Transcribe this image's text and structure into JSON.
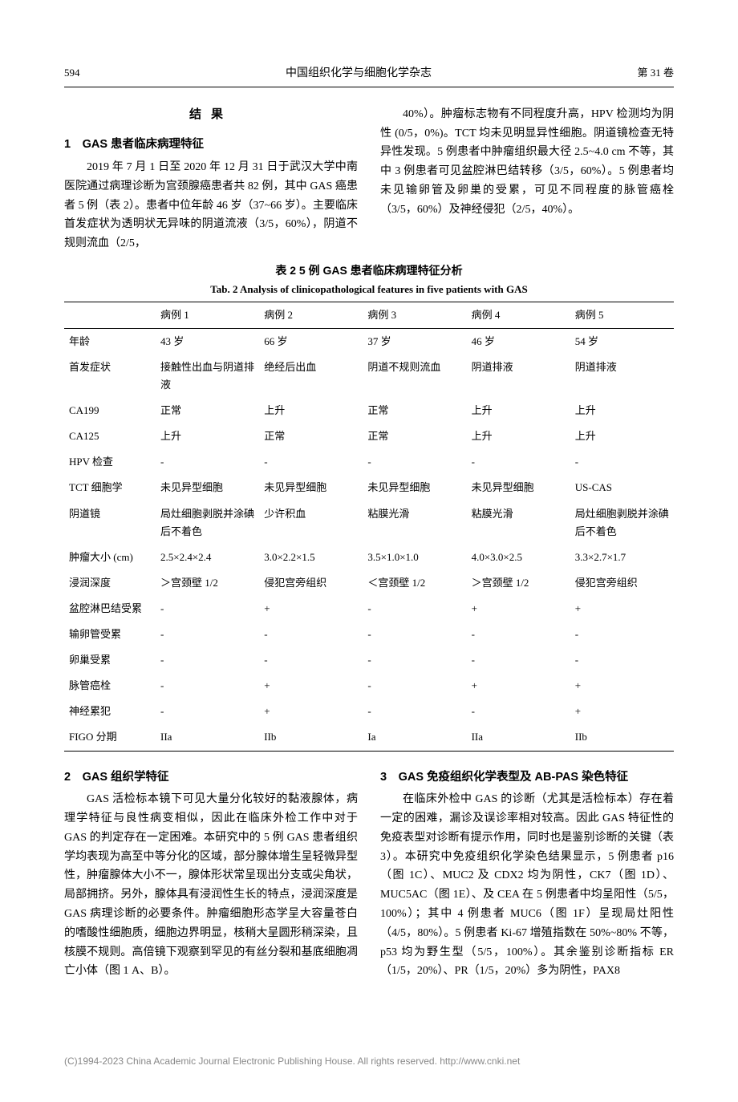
{
  "header": {
    "page_number": "594",
    "journal_title": "中国组织化学与细胞化学杂志",
    "volume": "第 31 卷"
  },
  "section_result_heading": "结果",
  "section1": {
    "heading": "1　GAS 患者临床病理特征",
    "para1": "2019 年 7 月 1 日至 2020 年 12 月 31 日于武汉大学中南医院通过病理诊断为宫颈腺癌患者共 82 例，其中 GAS 癌患者 5 例（表 2）。患者中位年龄 46 岁（37~66 岁）。主要临床首发症状为透明状无异味的阴道流液（3/5，60%），阴道不规则流血（2/5，",
    "para2": "40%）。肿瘤标志物有不同程度升高，HPV 检测均为阴性 (0/5，0%)。TCT 均未见明显异性细胞。阴道镜检查无特异性发现。5 例患者中肿瘤组织最大径 2.5~4.0 cm 不等，其中 3 例患者可见盆腔淋巴结转移（3/5，60%）。5 例患者均未见输卵管及卵巢的受累，可见不同程度的脉管癌栓（3/5，60%）及神经侵犯（2/5，40%）。"
  },
  "table2": {
    "caption_cn": "表 2 5 例 GAS 患者临床病理特征分析",
    "caption_en": "Tab. 2 Analysis of clinicopathological features in five patients with GAS",
    "columns": [
      "",
      "病例 1",
      "病例 2",
      "病例 3",
      "病例 4",
      "病例 5"
    ],
    "rows": [
      [
        "年龄",
        "43 岁",
        "66 岁",
        "37 岁",
        "46 岁",
        "54 岁"
      ],
      [
        "首发症状",
        "接触性出血与阴道排液",
        "绝经后出血",
        "阴道不规则流血",
        "阴道排液",
        "阴道排液"
      ],
      [
        "CA199",
        "正常",
        "上升",
        "正常",
        "上升",
        "上升"
      ],
      [
        "CA125",
        "上升",
        "正常",
        "正常",
        "上升",
        "上升"
      ],
      [
        "HPV 检查",
        "-",
        "-",
        "-",
        "-",
        "-"
      ],
      [
        "TCT 细胞学",
        "未见异型细胞",
        "未见异型细胞",
        "未见异型细胞",
        "未见异型细胞",
        "US-CAS"
      ],
      [
        "阴道镜",
        "局灶细胞剥脱并涂碘后不着色",
        "少许积血",
        "粘膜光滑",
        "粘膜光滑",
        "局灶细胞剥脱并涂碘后不着色"
      ],
      [
        "肿瘤大小 (cm)",
        "2.5×2.4×2.4",
        "3.0×2.2×1.5",
        "3.5×1.0×1.0",
        "4.0×3.0×2.5",
        "3.3×2.7×1.7"
      ],
      [
        "浸润深度",
        "＞宫颈壁 1/2",
        "侵犯宫旁组织",
        "＜宫颈壁 1/2",
        "＞宫颈壁 1/2",
        "侵犯宫旁组织"
      ],
      [
        "盆腔淋巴结受累",
        "-",
        "+",
        "-",
        "+",
        "+"
      ],
      [
        "输卵管受累",
        "-",
        "-",
        "-",
        "-",
        "-"
      ],
      [
        "卵巢受累",
        "-",
        "-",
        "-",
        "-",
        "-"
      ],
      [
        "脉管癌栓",
        "-",
        "+",
        "-",
        "+",
        "+"
      ],
      [
        "神经累犯",
        "-",
        "+",
        "-",
        "-",
        "+"
      ],
      [
        "FIGO 分期",
        "IIa",
        "IIb",
        "Ia",
        "IIa",
        "IIb"
      ]
    ]
  },
  "section2": {
    "heading": "2　GAS 组织学特征",
    "para": "GAS 活检标本镜下可见大量分化较好的黏液腺体，病理学特征与良性病变相似，因此在临床外检工作中对于 GAS 的判定存在一定困难。本研究中的 5 例 GAS 患者组织学均表现为高至中等分化的区域，部分腺体增生呈轻微异型性，肿瘤腺体大小不一，腺体形状常呈现出分支或尖角状，局部拥挤。另外，腺体具有浸润性生长的特点，浸润深度是 GAS 病理诊断的必要条件。肿瘤细胞形态学呈大容量苍白的嗜酸性细胞质，细胞边界明显，核稍大呈圆形稍深染，且核膜不规则。高倍镜下观察到罕见的有丝分裂和基底细胞凋亡小体（图 1 A、B）。"
  },
  "section3": {
    "heading": "3　GAS 免疫组织化学表型及 AB-PAS 染色特征",
    "para": "在临床外检中 GAS 的诊断（尤其是活检标本）存在着一定的困难，漏诊及误诊率相对较高。因此 GAS 特征性的免疫表型对诊断有提示作用，同时也是鉴别诊断的关键（表 3）。本研究中免疫组织化学染色结果显示，5 例患者 p16（图 1C）、MUC2 及 CDX2 均为阴性，CK7（图 1D）、MUC5AC（图 1E）、及 CEA 在 5 例患者中均呈阳性（5/5，100%）；其中 4 例患者 MUC6（图 1F）呈现局灶阳性（4/5，80%）。5 例患者 Ki-67 增殖指数在 50%~80% 不等，p53 均为野生型（5/5，100%）。其余鉴别诊断指标 ER（1/5，20%）、PR（1/5，20%）多为阴性，PAX8"
  },
  "footer": {
    "text": "(C)1994-2023 China Academic Journal Electronic Publishing House. All rights reserved.    http://www.cnki.net"
  }
}
